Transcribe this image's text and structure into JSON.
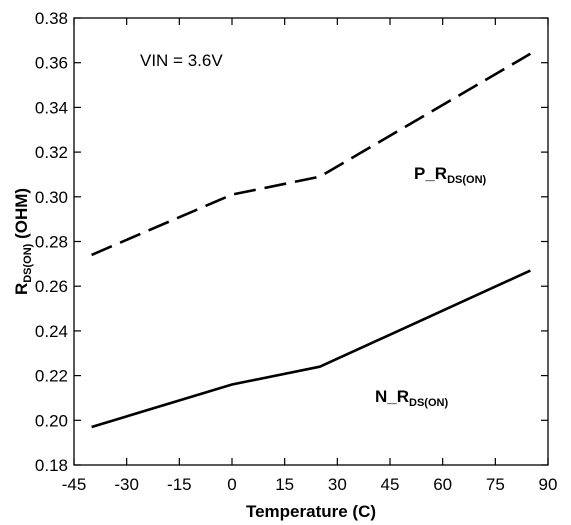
{
  "chart_data": {
    "type": "line",
    "xlabel": "Temperature (C)",
    "ylabel_main": "R",
    "ylabel_sub": "DS(ON)",
    "ylabel_suffix": " (OHM)",
    "xlim": [
      -45,
      90
    ],
    "ylim": [
      0.18,
      0.38
    ],
    "x_ticks": [
      -45,
      -30,
      -15,
      0,
      15,
      30,
      45,
      60,
      75,
      90
    ],
    "x_tick_labels": [
      "-45",
      "-30",
      "-15",
      "0",
      "15",
      "30",
      "45",
      "60",
      "75",
      "90"
    ],
    "y_ticks": [
      0.18,
      0.2,
      0.22,
      0.24,
      0.26,
      0.28,
      0.3,
      0.32,
      0.34,
      0.36,
      0.38
    ],
    "y_tick_labels": [
      "0.18",
      "0.20",
      "0.22",
      "0.24",
      "0.26",
      "0.28",
      "0.30",
      "0.32",
      "0.34",
      "0.36",
      "0.38"
    ],
    "grid": false,
    "annotation": "VIN = 3.6V",
    "series": [
      {
        "label_main": "P_R",
        "label_sub": "DS(ON)",
        "style": "dashed",
        "color": "#000000",
        "x": [
          -40,
          0,
          25,
          85
        ],
        "y": [
          0.274,
          0.301,
          0.309,
          0.364
        ]
      },
      {
        "label_main": "N_R",
        "label_sub": "DS(ON)",
        "style": "solid",
        "color": "#000000",
        "x": [
          -40,
          0,
          25,
          85
        ],
        "y": [
          0.197,
          0.216,
          0.224,
          0.267
        ]
      }
    ]
  }
}
